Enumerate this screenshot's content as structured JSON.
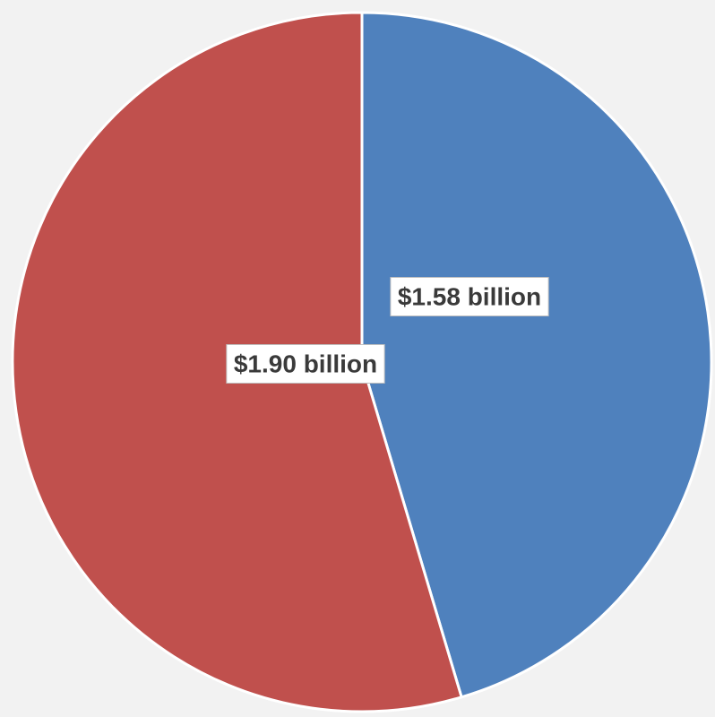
{
  "chart_data": {
    "type": "pie",
    "title": "",
    "slices": [
      {
        "value": 1.58,
        "label": "$1.58 billion",
        "color": "#4f81bd"
      },
      {
        "value": 1.9,
        "label": "$1.90 billion",
        "color": "#c0504d"
      }
    ],
    "start_angle": "12 o'clock",
    "direction": "clockwise",
    "legend": "none"
  },
  "colors": {
    "background": "#f2f2f2",
    "slice_border": "#ffffff",
    "label_background": "#ffffff",
    "label_text": "#3a3a3a"
  }
}
